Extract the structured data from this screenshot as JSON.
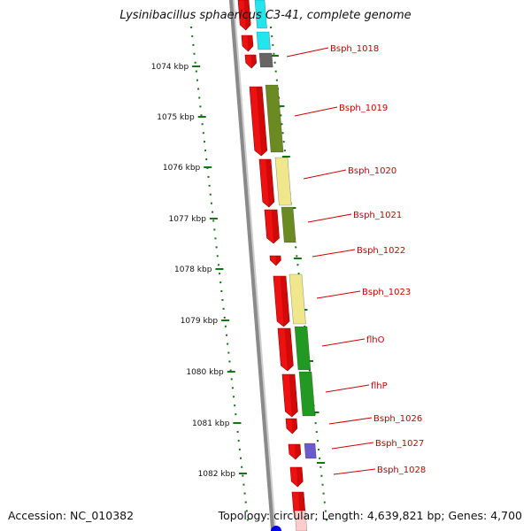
{
  "title": "Lysinibacillus sphaericus C3-41, complete genome",
  "accession_label": "Accession: NC_010382",
  "topology_label": "Topology: circular; Length: 4,639,821 bp; Genes: 4,700",
  "scale": {
    "ticks": [
      {
        "kbp": 1074,
        "label": "1074 kbp"
      },
      {
        "kbp": 1075,
        "label": "1075 kbp"
      },
      {
        "kbp": 1076,
        "label": "1076 kbp"
      },
      {
        "kbp": 1077,
        "label": "1077 kbp"
      },
      {
        "kbp": 1078,
        "label": "1078 kbp"
      },
      {
        "kbp": 1079,
        "label": "1079 kbp"
      },
      {
        "kbp": 1080,
        "label": "1080 kbp"
      },
      {
        "kbp": 1081,
        "label": "1081 kbp"
      },
      {
        "kbp": 1082,
        "label": "1082 kbp"
      }
    ]
  },
  "gene_labels": [
    {
      "name": "Bsph_1018"
    },
    {
      "name": "Bsph_1019"
    },
    {
      "name": "Bsph_1020"
    },
    {
      "name": "Bsph_1021"
    },
    {
      "name": "Bsph_1022"
    },
    {
      "name": "Bsph_1023"
    },
    {
      "name": "flhO"
    },
    {
      "name": "flhP"
    },
    {
      "name": "Bsph_1026"
    },
    {
      "name": "Bsph_1027"
    },
    {
      "name": "Bsph_1028"
    }
  ],
  "colors": {
    "backbone": "#8a8a8a",
    "tick": "#117711",
    "gene": "#ee1111",
    "label": "#cc0000",
    "cyan": "#22e5ee",
    "gray": "#666666",
    "olive": "#6b8a22",
    "khaki": "#f0e68c",
    "green": "#229922",
    "purple": "#6a5acd",
    "blue": "#0000ee",
    "pink": "#ffcccc"
  }
}
